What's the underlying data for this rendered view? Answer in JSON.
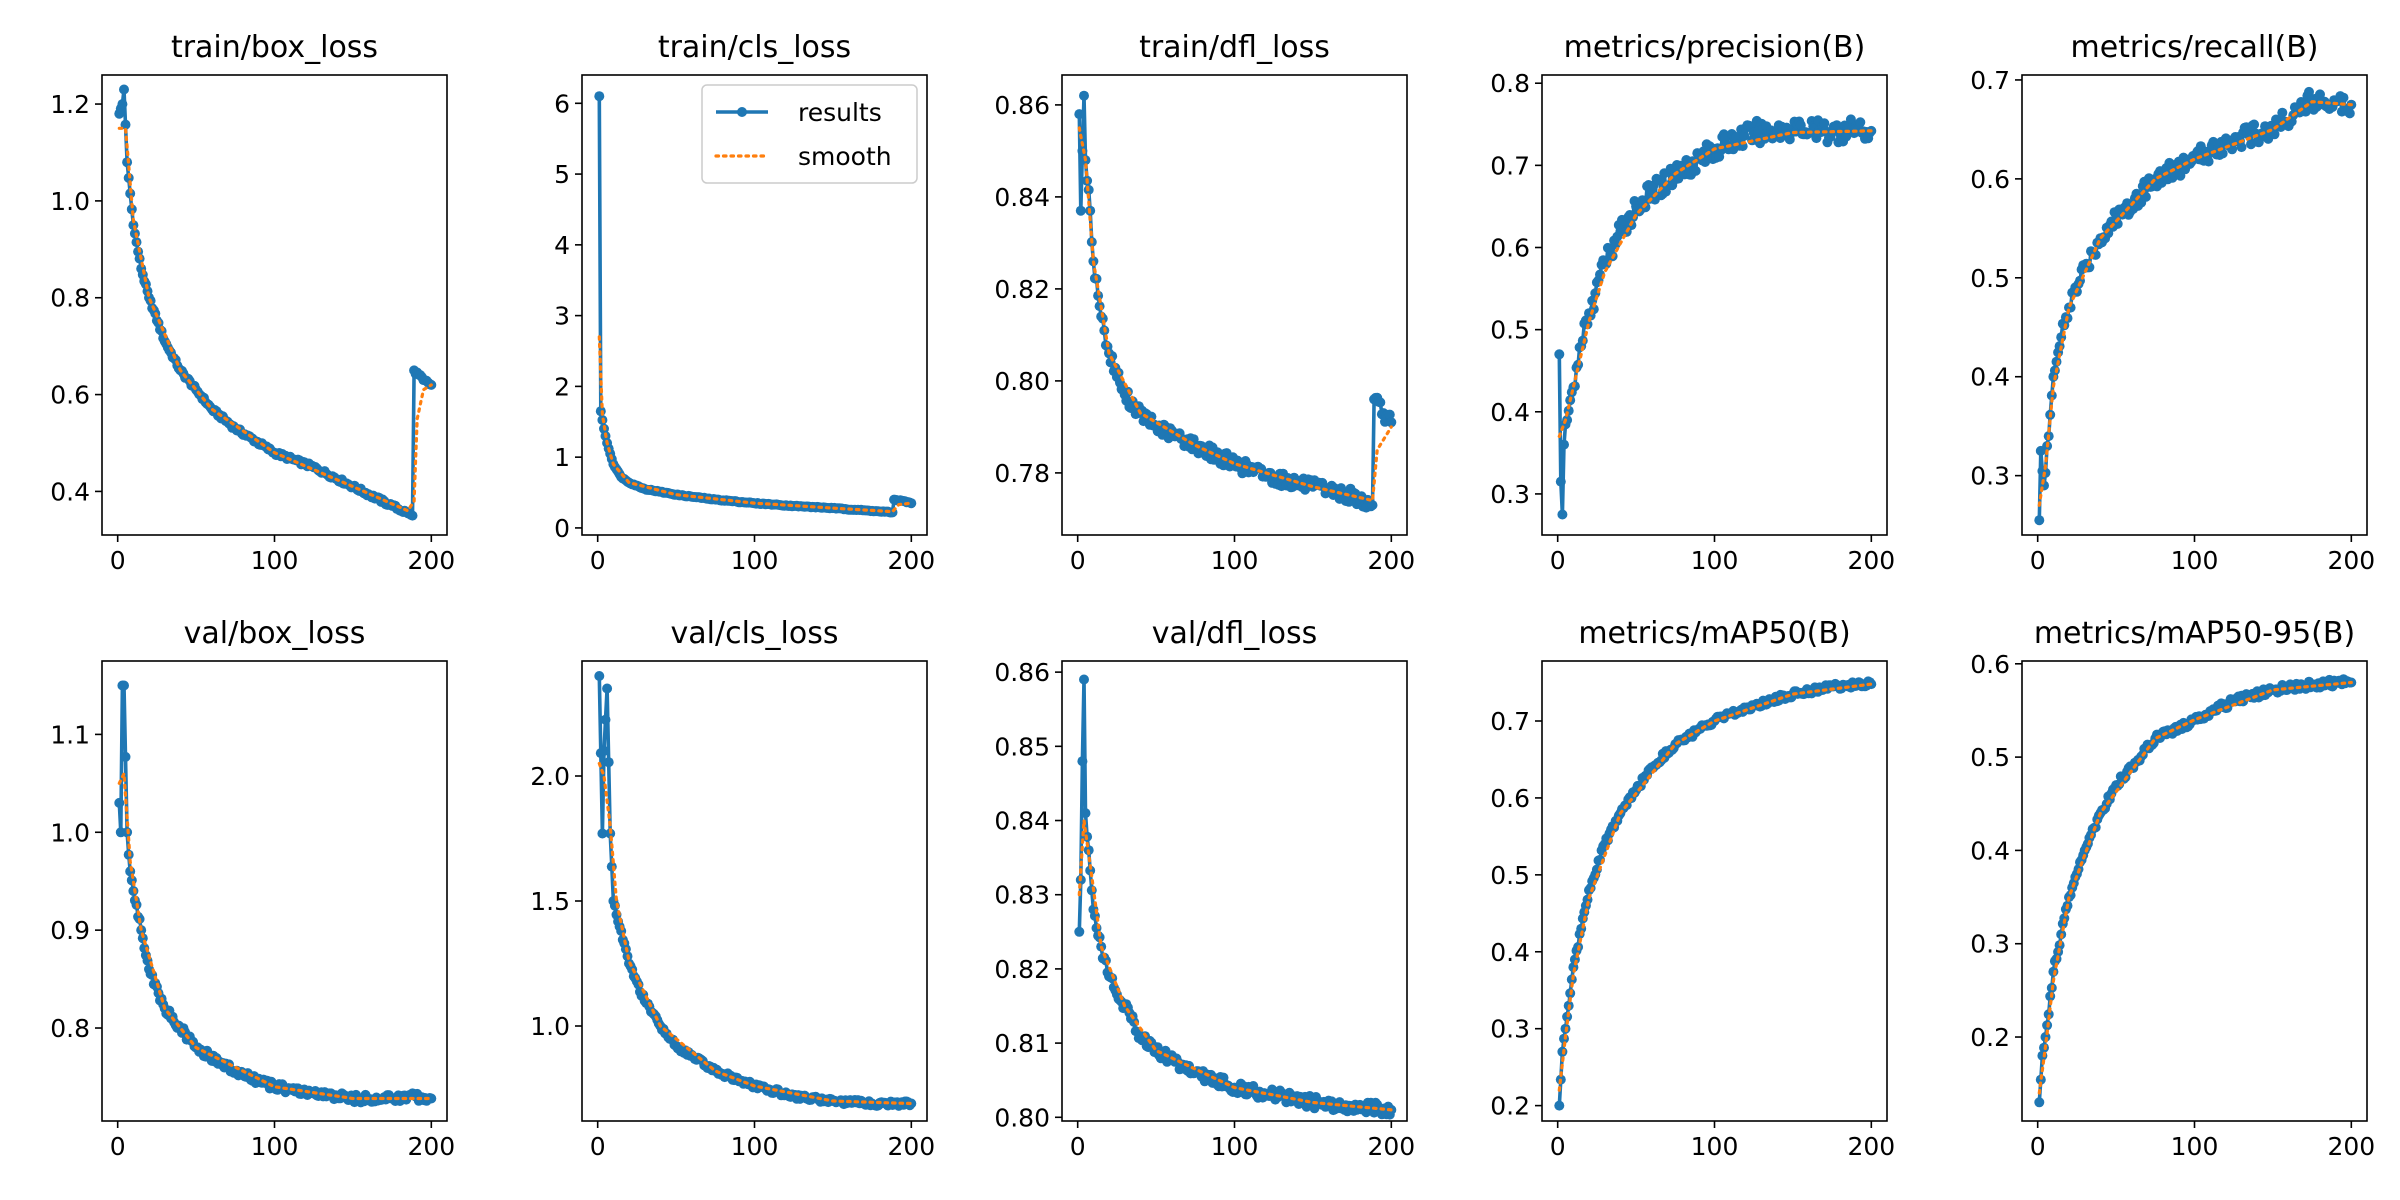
{
  "colors": {
    "results": "#1f77b4",
    "smooth": "#ff7f0e",
    "axes": "#000000",
    "background": "#ffffff"
  },
  "legend": {
    "results_label": "results",
    "smooth_label": "smooth",
    "placement": "top-right",
    "in_panel": 1
  },
  "chart_data": [
    {
      "type": "line",
      "title": "train/box_loss",
      "xlim": [
        -10,
        210
      ],
      "ylim": [
        0.31,
        1.26
      ],
      "xticks": [
        0,
        100,
        200
      ],
      "yticks": [
        0.4,
        0.6,
        0.8,
        1.0,
        1.2
      ],
      "ytick_labels": [
        "0.4",
        "0.6",
        "0.8",
        "1.0",
        "1.2"
      ],
      "anchors": [
        [
          1,
          1.18
        ],
        [
          3,
          1.2
        ],
        [
          4,
          1.23
        ],
        [
          6,
          1.08
        ],
        [
          10,
          0.95
        ],
        [
          15,
          0.86
        ],
        [
          20,
          0.8
        ],
        [
          30,
          0.71
        ],
        [
          40,
          0.65
        ],
        [
          50,
          0.61
        ],
        [
          60,
          0.57
        ],
        [
          75,
          0.53
        ],
        [
          100,
          0.48
        ],
        [
          125,
          0.45
        ],
        [
          150,
          0.41
        ],
        [
          175,
          0.37
        ],
        [
          185,
          0.355
        ],
        [
          188,
          0.35
        ],
        [
          189,
          0.65
        ],
        [
          195,
          0.63
        ],
        [
          200,
          0.62
        ]
      ],
      "smooth_anchors": [
        [
          1,
          1.15
        ],
        [
          5,
          1.15
        ],
        [
          10,
          0.96
        ],
        [
          20,
          0.8
        ],
        [
          40,
          0.65
        ],
        [
          60,
          0.57
        ],
        [
          100,
          0.48
        ],
        [
          150,
          0.41
        ],
        [
          185,
          0.36
        ],
        [
          189,
          0.38
        ],
        [
          191,
          0.55
        ],
        [
          195,
          0.61
        ],
        [
          200,
          0.62
        ]
      ],
      "noise": 0.004
    },
    {
      "type": "line",
      "title": "train/cls_loss",
      "xlim": [
        -10,
        210
      ],
      "ylim": [
        -0.1,
        6.4
      ],
      "xticks": [
        0,
        100,
        200
      ],
      "yticks": [
        0,
        1,
        2,
        3,
        4,
        5,
        6
      ],
      "ytick_labels": [
        "0",
        "1",
        "2",
        "3",
        "4",
        "5",
        "6"
      ],
      "anchors": [
        [
          1,
          6.1
        ],
        [
          2,
          1.65
        ],
        [
          4,
          1.4
        ],
        [
          6,
          1.2
        ],
        [
          10,
          0.9
        ],
        [
          15,
          0.72
        ],
        [
          20,
          0.64
        ],
        [
          30,
          0.55
        ],
        [
          50,
          0.47
        ],
        [
          75,
          0.4
        ],
        [
          100,
          0.35
        ],
        [
          125,
          0.31
        ],
        [
          150,
          0.28
        ],
        [
          175,
          0.24
        ],
        [
          188,
          0.22
        ],
        [
          189,
          0.4
        ],
        [
          195,
          0.38
        ],
        [
          200,
          0.35
        ]
      ],
      "smooth_anchors": [
        [
          1,
          2.7
        ],
        [
          3,
          1.6
        ],
        [
          6,
          1.2
        ],
        [
          10,
          0.9
        ],
        [
          20,
          0.64
        ],
        [
          50,
          0.47
        ],
        [
          100,
          0.35
        ],
        [
          150,
          0.28
        ],
        [
          188,
          0.23
        ],
        [
          192,
          0.33
        ],
        [
          200,
          0.35
        ]
      ],
      "noise": 0.006
    },
    {
      "type": "line",
      "title": "train/dfl_loss",
      "xlim": [
        -10,
        210
      ],
      "ylim": [
        0.7665,
        0.8665
      ],
      "xticks": [
        0,
        100,
        200
      ],
      "yticks": [
        0.78,
        0.8,
        0.82,
        0.84,
        0.86
      ],
      "ytick_labels": [
        "0.78",
        "0.80",
        "0.82",
        "0.84",
        "0.86"
      ],
      "anchors": [
        [
          1,
          0.858
        ],
        [
          2,
          0.837
        ],
        [
          3,
          0.85
        ],
        [
          4,
          0.862
        ],
        [
          5,
          0.848
        ],
        [
          8,
          0.837
        ],
        [
          10,
          0.826
        ],
        [
          15,
          0.814
        ],
        [
          20,
          0.806
        ],
        [
          30,
          0.797
        ],
        [
          40,
          0.793
        ],
        [
          50,
          0.79
        ],
        [
          75,
          0.786
        ],
        [
          100,
          0.782
        ],
        [
          125,
          0.779
        ],
        [
          150,
          0.777
        ],
        [
          175,
          0.775
        ],
        [
          188,
          0.773
        ],
        [
          189,
          0.796
        ],
        [
          195,
          0.793
        ],
        [
          200,
          0.791
        ]
      ],
      "smooth_anchors": [
        [
          1,
          0.855
        ],
        [
          5,
          0.848
        ],
        [
          10,
          0.826
        ],
        [
          20,
          0.806
        ],
        [
          40,
          0.793
        ],
        [
          75,
          0.786
        ],
        [
          100,
          0.782
        ],
        [
          150,
          0.777
        ],
        [
          188,
          0.774
        ],
        [
          191,
          0.785
        ],
        [
          200,
          0.79
        ]
      ],
      "noise": 0.0015
    },
    {
      "type": "line",
      "title": "metrics/precision(B)",
      "xlim": [
        -10,
        210
      ],
      "ylim": [
        0.25,
        0.81
      ],
      "xticks": [
        0,
        100,
        200
      ],
      "yticks": [
        0.3,
        0.4,
        0.5,
        0.6,
        0.7,
        0.8
      ],
      "ytick_labels": [
        "0.3",
        "0.4",
        "0.5",
        "0.6",
        "0.7",
        "0.8"
      ],
      "anchors": [
        [
          1,
          0.47
        ],
        [
          2,
          0.315
        ],
        [
          3,
          0.275
        ],
        [
          4,
          0.36
        ],
        [
          6,
          0.39
        ],
        [
          10,
          0.43
        ],
        [
          15,
          0.48
        ],
        [
          20,
          0.52
        ],
        [
          30,
          0.58
        ],
        [
          40,
          0.62
        ],
        [
          50,
          0.65
        ],
        [
          75,
          0.69
        ],
        [
          100,
          0.72
        ],
        [
          125,
          0.74
        ],
        [
          150,
          0.745
        ],
        [
          175,
          0.74
        ],
        [
          190,
          0.745
        ],
        [
          200,
          0.742
        ]
      ],
      "smooth_anchors": [
        [
          1,
          0.37
        ],
        [
          5,
          0.39
        ],
        [
          10,
          0.43
        ],
        [
          20,
          0.51
        ],
        [
          30,
          0.57
        ],
        [
          50,
          0.64
        ],
        [
          75,
          0.69
        ],
        [
          100,
          0.72
        ],
        [
          150,
          0.74
        ],
        [
          200,
          0.742
        ]
      ],
      "noise": 0.014
    },
    {
      "type": "line",
      "title": "metrics/recall(B)",
      "xlim": [
        -10,
        210
      ],
      "ylim": [
        0.24,
        0.705
      ],
      "xticks": [
        0,
        100,
        200
      ],
      "yticks": [
        0.3,
        0.4,
        0.5,
        0.6,
        0.7
      ],
      "ytick_labels": [
        "0.3",
        "0.4",
        "0.5",
        "0.6",
        "0.7"
      ],
      "anchors": [
        [
          1,
          0.255
        ],
        [
          2,
          0.325
        ],
        [
          4,
          0.29
        ],
        [
          6,
          0.33
        ],
        [
          10,
          0.4
        ],
        [
          15,
          0.44
        ],
        [
          20,
          0.47
        ],
        [
          30,
          0.51
        ],
        [
          40,
          0.54
        ],
        [
          50,
          0.56
        ],
        [
          75,
          0.6
        ],
        [
          100,
          0.62
        ],
        [
          125,
          0.64
        ],
        [
          150,
          0.65
        ],
        [
          165,
          0.67
        ],
        [
          175,
          0.68
        ],
        [
          190,
          0.678
        ],
        [
          200,
          0.675
        ]
      ],
      "smooth_anchors": [
        [
          1,
          0.27
        ],
        [
          5,
          0.31
        ],
        [
          10,
          0.39
        ],
        [
          20,
          0.47
        ],
        [
          40,
          0.54
        ],
        [
          75,
          0.6
        ],
        [
          100,
          0.62
        ],
        [
          150,
          0.65
        ],
        [
          175,
          0.678
        ],
        [
          200,
          0.675
        ]
      ],
      "noise": 0.01
    },
    {
      "type": "line",
      "title": "val/box_loss",
      "xlim": [
        -10,
        210
      ],
      "ylim": [
        0.705,
        1.175
      ],
      "xticks": [
        0,
        100,
        200
      ],
      "yticks": [
        0.8,
        0.9,
        1.0,
        1.1
      ],
      "ytick_labels": [
        "0.8",
        "0.9",
        "1.0",
        "1.1"
      ],
      "anchors": [
        [
          1,
          1.03
        ],
        [
          2,
          1.0
        ],
        [
          3,
          1.15
        ],
        [
          4,
          1.15
        ],
        [
          6,
          1.0
        ],
        [
          8,
          0.96
        ],
        [
          10,
          0.94
        ],
        [
          15,
          0.9
        ],
        [
          20,
          0.86
        ],
        [
          30,
          0.82
        ],
        [
          40,
          0.8
        ],
        [
          50,
          0.78
        ],
        [
          75,
          0.755
        ],
        [
          100,
          0.74
        ],
        [
          125,
          0.733
        ],
        [
          150,
          0.728
        ],
        [
          175,
          0.728
        ],
        [
          190,
          0.73
        ],
        [
          200,
          0.728
        ]
      ],
      "smooth_anchors": [
        [
          1,
          1.05
        ],
        [
          4,
          1.06
        ],
        [
          8,
          0.97
        ],
        [
          15,
          0.9
        ],
        [
          30,
          0.82
        ],
        [
          50,
          0.78
        ],
        [
          100,
          0.74
        ],
        [
          150,
          0.728
        ],
        [
          200,
          0.728
        ]
      ],
      "noise": 0.004
    },
    {
      "type": "line",
      "title": "val/cls_loss",
      "xlim": [
        -10,
        210
      ],
      "ylim": [
        0.62,
        2.46
      ],
      "xticks": [
        0,
        100,
        200
      ],
      "yticks": [
        1.0,
        1.5,
        2.0
      ],
      "ytick_labels": [
        "1.0",
        "1.5",
        "2.0"
      ],
      "anchors": [
        [
          1,
          2.4
        ],
        [
          3,
          1.77
        ],
        [
          4,
          2.1
        ],
        [
          6,
          2.35
        ],
        [
          8,
          1.77
        ],
        [
          10,
          1.5
        ],
        [
          15,
          1.38
        ],
        [
          20,
          1.25
        ],
        [
          30,
          1.1
        ],
        [
          40,
          1.0
        ],
        [
          50,
          0.92
        ],
        [
          75,
          0.82
        ],
        [
          100,
          0.76
        ],
        [
          125,
          0.72
        ],
        [
          150,
          0.7
        ],
        [
          175,
          0.69
        ],
        [
          200,
          0.69
        ]
      ],
      "smooth_anchors": [
        [
          1,
          2.05
        ],
        [
          4,
          2.0
        ],
        [
          8,
          1.8
        ],
        [
          12,
          1.5
        ],
        [
          20,
          1.26
        ],
        [
          40,
          1.0
        ],
        [
          75,
          0.82
        ],
        [
          100,
          0.76
        ],
        [
          150,
          0.7
        ],
        [
          200,
          0.69
        ]
      ],
      "noise": 0.01
    },
    {
      "type": "line",
      "title": "val/dfl_loss",
      "xlim": [
        -10,
        210
      ],
      "ylim": [
        0.7995,
        0.8615
      ],
      "xticks": [
        0,
        100,
        200
      ],
      "yticks": [
        0.8,
        0.81,
        0.82,
        0.83,
        0.84,
        0.85,
        0.86
      ],
      "ytick_labels": [
        "0.80",
        "0.81",
        "0.82",
        "0.83",
        "0.84",
        "0.85",
        "0.86"
      ],
      "anchors": [
        [
          1,
          0.825
        ],
        [
          2,
          0.832
        ],
        [
          3,
          0.848
        ],
        [
          4,
          0.859
        ],
        [
          5,
          0.841
        ],
        [
          7,
          0.836
        ],
        [
          10,
          0.828
        ],
        [
          15,
          0.823
        ],
        [
          20,
          0.819
        ],
        [
          30,
          0.815
        ],
        [
          40,
          0.811
        ],
        [
          50,
          0.809
        ],
        [
          75,
          0.806
        ],
        [
          100,
          0.804
        ],
        [
          125,
          0.803
        ],
        [
          150,
          0.802
        ],
        [
          175,
          0.8015
        ],
        [
          200,
          0.801
        ]
      ],
      "smooth_anchors": [
        [
          1,
          0.83
        ],
        [
          4,
          0.84
        ],
        [
          8,
          0.834
        ],
        [
          15,
          0.823
        ],
        [
          30,
          0.815
        ],
        [
          50,
          0.809
        ],
        [
          100,
          0.804
        ],
        [
          150,
          0.802
        ],
        [
          200,
          0.801
        ]
      ],
      "noise": 0.0008
    },
    {
      "type": "line",
      "title": "metrics/mAP50(B)",
      "xlim": [
        -10,
        210
      ],
      "ylim": [
        0.18,
        0.778
      ],
      "xticks": [
        0,
        100,
        200
      ],
      "yticks": [
        0.2,
        0.3,
        0.4,
        0.5,
        0.6,
        0.7
      ],
      "ytick_labels": [
        "0.2",
        "0.3",
        "0.4",
        "0.5",
        "0.6",
        "0.7"
      ],
      "anchors": [
        [
          1,
          0.2
        ],
        [
          3,
          0.27
        ],
        [
          5,
          0.3
        ],
        [
          10,
          0.38
        ],
        [
          15,
          0.43
        ],
        [
          20,
          0.48
        ],
        [
          30,
          0.54
        ],
        [
          40,
          0.58
        ],
        [
          50,
          0.61
        ],
        [
          60,
          0.64
        ],
        [
          75,
          0.67
        ],
        [
          100,
          0.7
        ],
        [
          125,
          0.72
        ],
        [
          150,
          0.735
        ],
        [
          175,
          0.745
        ],
        [
          200,
          0.748
        ]
      ],
      "smooth_anchors": [
        [
          1,
          0.22
        ],
        [
          5,
          0.29
        ],
        [
          10,
          0.37
        ],
        [
          20,
          0.47
        ],
        [
          40,
          0.58
        ],
        [
          75,
          0.67
        ],
        [
          100,
          0.7
        ],
        [
          150,
          0.735
        ],
        [
          200,
          0.748
        ]
      ],
      "noise": 0.004
    },
    {
      "type": "line",
      "title": "metrics/mAP50-95(B)",
      "xlim": [
        -10,
        210
      ],
      "ylim": [
        0.11,
        0.603
      ],
      "xticks": [
        0,
        100,
        200
      ],
      "yticks": [
        0.2,
        0.3,
        0.4,
        0.5,
        0.6
      ],
      "ytick_labels": [
        "0.2",
        "0.3",
        "0.4",
        "0.5",
        "0.6"
      ],
      "anchors": [
        [
          1,
          0.13
        ],
        [
          3,
          0.18
        ],
        [
          5,
          0.2
        ],
        [
          10,
          0.27
        ],
        [
          15,
          0.31
        ],
        [
          20,
          0.35
        ],
        [
          30,
          0.4
        ],
        [
          40,
          0.44
        ],
        [
          50,
          0.47
        ],
        [
          60,
          0.49
        ],
        [
          75,
          0.52
        ],
        [
          100,
          0.54
        ],
        [
          125,
          0.56
        ],
        [
          150,
          0.572
        ],
        [
          175,
          0.578
        ],
        [
          200,
          0.58
        ]
      ],
      "smooth_anchors": [
        [
          1,
          0.14
        ],
        [
          5,
          0.19
        ],
        [
          10,
          0.26
        ],
        [
          20,
          0.35
        ],
        [
          40,
          0.44
        ],
        [
          75,
          0.52
        ],
        [
          100,
          0.54
        ],
        [
          150,
          0.572
        ],
        [
          200,
          0.58
        ]
      ],
      "noise": 0.004
    }
  ]
}
